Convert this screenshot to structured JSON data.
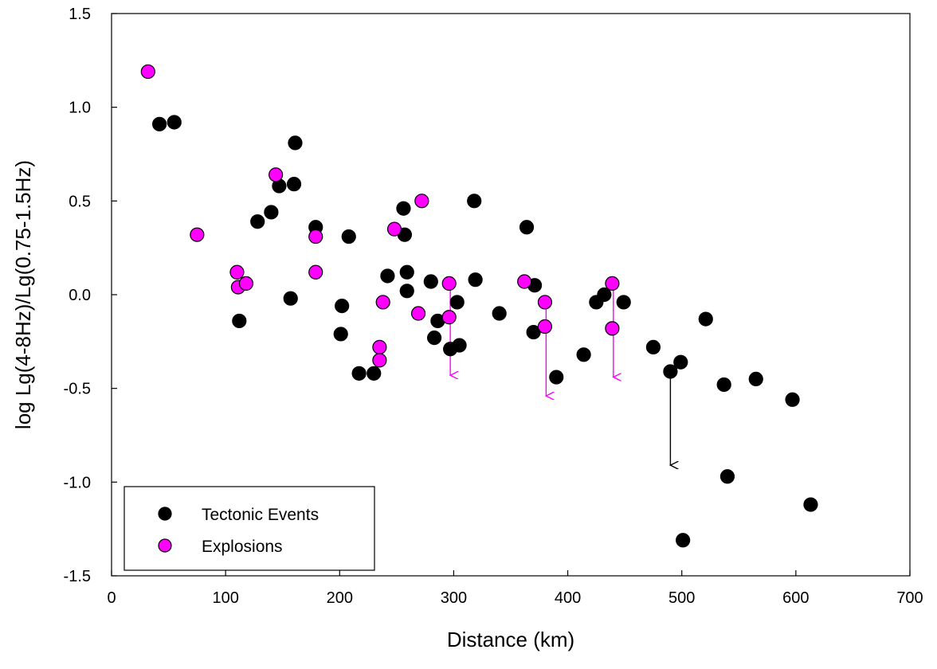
{
  "chart_data": {
    "type": "scatter",
    "xlabel": "Distance (km)",
    "ylabel": "log Lg(4-8Hz)/Lg(0.75-1.5Hz)",
    "xlim": [
      0,
      700
    ],
    "ylim": [
      -1.5,
      1.5
    ],
    "xticks": [
      "0",
      "100",
      "200",
      "300",
      "400",
      "500",
      "600",
      "700"
    ],
    "yticks": [
      "1.5",
      "1.0",
      "0.5",
      "0.0",
      "-0.5",
      "-1.0",
      "-1.5"
    ],
    "grid": false,
    "legend_position": "bottom-left",
    "series": [
      {
        "name": "Tectonic Events",
        "color": "#000000",
        "marker_fill": "#000000",
        "points": [
          [
            42,
            0.91
          ],
          [
            55,
            0.92
          ],
          [
            128,
            0.39
          ],
          [
            140,
            0.44
          ],
          [
            147,
            0.58
          ],
          [
            157,
            -0.02
          ],
          [
            160,
            0.59
          ],
          [
            161,
            0.81
          ],
          [
            112,
            -0.14
          ],
          [
            179,
            0.36
          ],
          [
            201,
            -0.21
          ],
          [
            202,
            -0.06
          ],
          [
            208,
            0.31
          ],
          [
            217,
            -0.42
          ],
          [
            230,
            -0.42
          ],
          [
            242,
            0.1
          ],
          [
            256,
            0.46
          ],
          [
            257,
            0.32
          ],
          [
            259,
            0.02
          ],
          [
            259,
            0.12
          ],
          [
            280,
            0.07
          ],
          [
            283,
            -0.23
          ],
          [
            286,
            -0.14
          ],
          [
            297,
            -0.29
          ],
          [
            303,
            -0.04
          ],
          [
            305,
            -0.27
          ],
          [
            318,
            0.5
          ],
          [
            319,
            0.08
          ],
          [
            340,
            -0.1
          ],
          [
            364,
            0.36
          ],
          [
            370,
            -0.2
          ],
          [
            371,
            0.05
          ],
          [
            390,
            -0.44
          ],
          [
            414,
            -0.32
          ],
          [
            425,
            -0.04
          ],
          [
            432,
            0.0
          ],
          [
            449,
            -0.04
          ],
          [
            475,
            -0.28
          ],
          [
            490,
            -0.41
          ],
          [
            499,
            -0.36
          ],
          [
            501,
            -1.31
          ],
          [
            521,
            -0.13
          ],
          [
            537,
            -0.48
          ],
          [
            540,
            -0.97
          ],
          [
            565,
            -0.45
          ],
          [
            597,
            -0.56
          ],
          [
            613,
            -1.12
          ]
        ]
      },
      {
        "name": "Explosions",
        "color": "#ff00ff",
        "marker_fill": "#ff00ff",
        "points": [
          [
            32,
            1.19
          ],
          [
            75,
            0.32
          ],
          [
            110,
            0.12
          ],
          [
            111,
            0.04
          ],
          [
            118,
            0.06
          ],
          [
            144,
            0.64
          ],
          [
            179,
            0.31
          ],
          [
            179,
            0.12
          ],
          [
            235,
            -0.28
          ],
          [
            235,
            -0.35
          ],
          [
            238,
            -0.04
          ],
          [
            248,
            0.35
          ],
          [
            269,
            -0.1
          ],
          [
            272,
            0.5
          ],
          [
            296,
            0.06
          ],
          [
            296,
            -0.12
          ],
          [
            362,
            0.07
          ],
          [
            380,
            -0.04
          ],
          [
            380,
            -0.17
          ],
          [
            439,
            0.06
          ],
          [
            439,
            -0.18
          ]
        ]
      }
    ],
    "upper_bound_arrows": [
      {
        "series": "Explosions",
        "x": 297,
        "from": 0.05,
        "to": -0.43,
        "color": "#ff00ff"
      },
      {
        "series": "Explosions",
        "x": 381,
        "from": -0.05,
        "to": -0.54,
        "color": "#ff00ff"
      },
      {
        "series": "Explosions",
        "x": 440,
        "from": 0.05,
        "to": -0.44,
        "color": "#ff00ff"
      },
      {
        "series": "Tectonic Events",
        "x": 490,
        "from": -0.43,
        "to": -0.91,
        "color": "#000000"
      }
    ]
  }
}
